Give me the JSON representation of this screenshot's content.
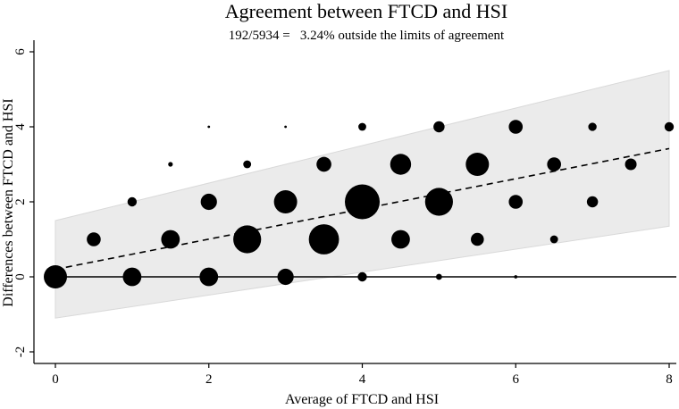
{
  "chart_data": {
    "type": "scatter",
    "title": "Agreement between FTCD and HSI",
    "subtitle": "192/5934 =   3.24% outside the limits of agreement",
    "xlabel": "Average of FTCD and HSI",
    "ylabel": "Differences between FTCD and HSI",
    "xlim": [
      0,
      8
    ],
    "ylim": [
      -2,
      6
    ],
    "xticks": [
      "0",
      "2",
      "4",
      "6",
      "8"
    ],
    "yticks": [
      "-2",
      "0",
      "2",
      "4",
      "6"
    ],
    "grid": false,
    "zero_line": 0,
    "regression_line": {
      "x": [
        0,
        8
      ],
      "y": [
        0.2,
        3.42
      ]
    },
    "limits_of_agreement": {
      "x": [
        0,
        8
      ],
      "upper": [
        1.5,
        5.5
      ],
      "lower": [
        -1.1,
        1.35
      ]
    },
    "points": [
      {
        "x": 0,
        "y": 0,
        "size": 5
      },
      {
        "x": 0.5,
        "y": 1,
        "size": 3
      },
      {
        "x": 1,
        "y": 0,
        "size": 4
      },
      {
        "x": 1,
        "y": 2,
        "size": 2
      },
      {
        "x": 1.5,
        "y": 1,
        "size": 4
      },
      {
        "x": 1.5,
        "y": 3,
        "size": 1
      },
      {
        "x": 2,
        "y": 0,
        "size": 4
      },
      {
        "x": 2,
        "y": 2,
        "size": 3.5
      },
      {
        "x": 2,
        "y": 4,
        "size": 0.4
      },
      {
        "x": 2.5,
        "y": 1,
        "size": 6
      },
      {
        "x": 2.5,
        "y": 3,
        "size": 1.7
      },
      {
        "x": 3,
        "y": 0,
        "size": 3.5
      },
      {
        "x": 3,
        "y": 2,
        "size": 5
      },
      {
        "x": 3,
        "y": 4,
        "size": 0.4
      },
      {
        "x": 3.5,
        "y": 1,
        "size": 6.5
      },
      {
        "x": 3.5,
        "y": 3,
        "size": 3.2
      },
      {
        "x": 4,
        "y": 0,
        "size": 2
      },
      {
        "x": 4,
        "y": 2,
        "size": 7.5
      },
      {
        "x": 4,
        "y": 4,
        "size": 1.7
      },
      {
        "x": 4.5,
        "y": 1,
        "size": 4
      },
      {
        "x": 4.5,
        "y": 3,
        "size": 4.5
      },
      {
        "x": 5,
        "y": 0,
        "size": 1.3
      },
      {
        "x": 5,
        "y": 2,
        "size": 6
      },
      {
        "x": 5,
        "y": 4,
        "size": 2.4
      },
      {
        "x": 5.5,
        "y": 1,
        "size": 2.8
      },
      {
        "x": 5.5,
        "y": 3,
        "size": 5
      },
      {
        "x": 6,
        "y": 0,
        "size": 0.7
      },
      {
        "x": 6,
        "y": 2,
        "size": 3
      },
      {
        "x": 6,
        "y": 4,
        "size": 3
      },
      {
        "x": 6.5,
        "y": 1,
        "size": 1.7
      },
      {
        "x": 6.5,
        "y": 3,
        "size": 3
      },
      {
        "x": 7,
        "y": 2,
        "size": 2.4
      },
      {
        "x": 7,
        "y": 4,
        "size": 1.8
      },
      {
        "x": 7.5,
        "y": 3,
        "size": 2.5
      },
      {
        "x": 8,
        "y": 4,
        "size": 2
      }
    ],
    "colors": {
      "points": "#000000",
      "band": "#ebebeb",
      "band_edge": "#d9d9d9"
    }
  }
}
